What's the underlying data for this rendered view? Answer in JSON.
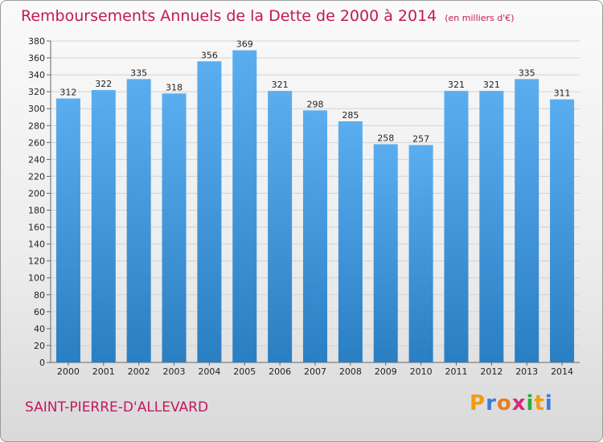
{
  "title": "Remboursements Annuels de la Dette de 2000 à 2014",
  "unit": "(en milliers d'€)",
  "commune": "SAINT-PIERRE-D'ALLEVARD",
  "logo": {
    "letters": [
      "P",
      "r",
      "o",
      "x",
      "i",
      "t",
      "i"
    ],
    "colors": [
      "#f39c12",
      "#3a7fd5",
      "#e67e22",
      "#d62a7a",
      "#2eab3b",
      "#f39c12",
      "#3a7fd5"
    ]
  },
  "colors": {
    "bar_top": "#5aaef0",
    "bar_bottom": "#2a7ec2",
    "title": "#c2185b"
  },
  "chart_data": {
    "type": "bar",
    "categories": [
      "2000",
      "2001",
      "2002",
      "2003",
      "2004",
      "2005",
      "2006",
      "2007",
      "2008",
      "2009",
      "2010",
      "2011",
      "2012",
      "2013",
      "2014"
    ],
    "values": [
      312,
      322,
      335,
      318,
      356,
      369,
      321,
      298,
      285,
      258,
      257,
      321,
      321,
      335,
      311
    ],
    "yticks": [
      0,
      20,
      40,
      60,
      80,
      100,
      120,
      140,
      160,
      180,
      200,
      220,
      240,
      260,
      280,
      300,
      320,
      340,
      360,
      380
    ],
    "ylim": [
      0,
      380
    ],
    "grid": true,
    "title": "Remboursements Annuels de la Dette de 2000 à 2014",
    "xlabel": "",
    "ylabel": ""
  }
}
